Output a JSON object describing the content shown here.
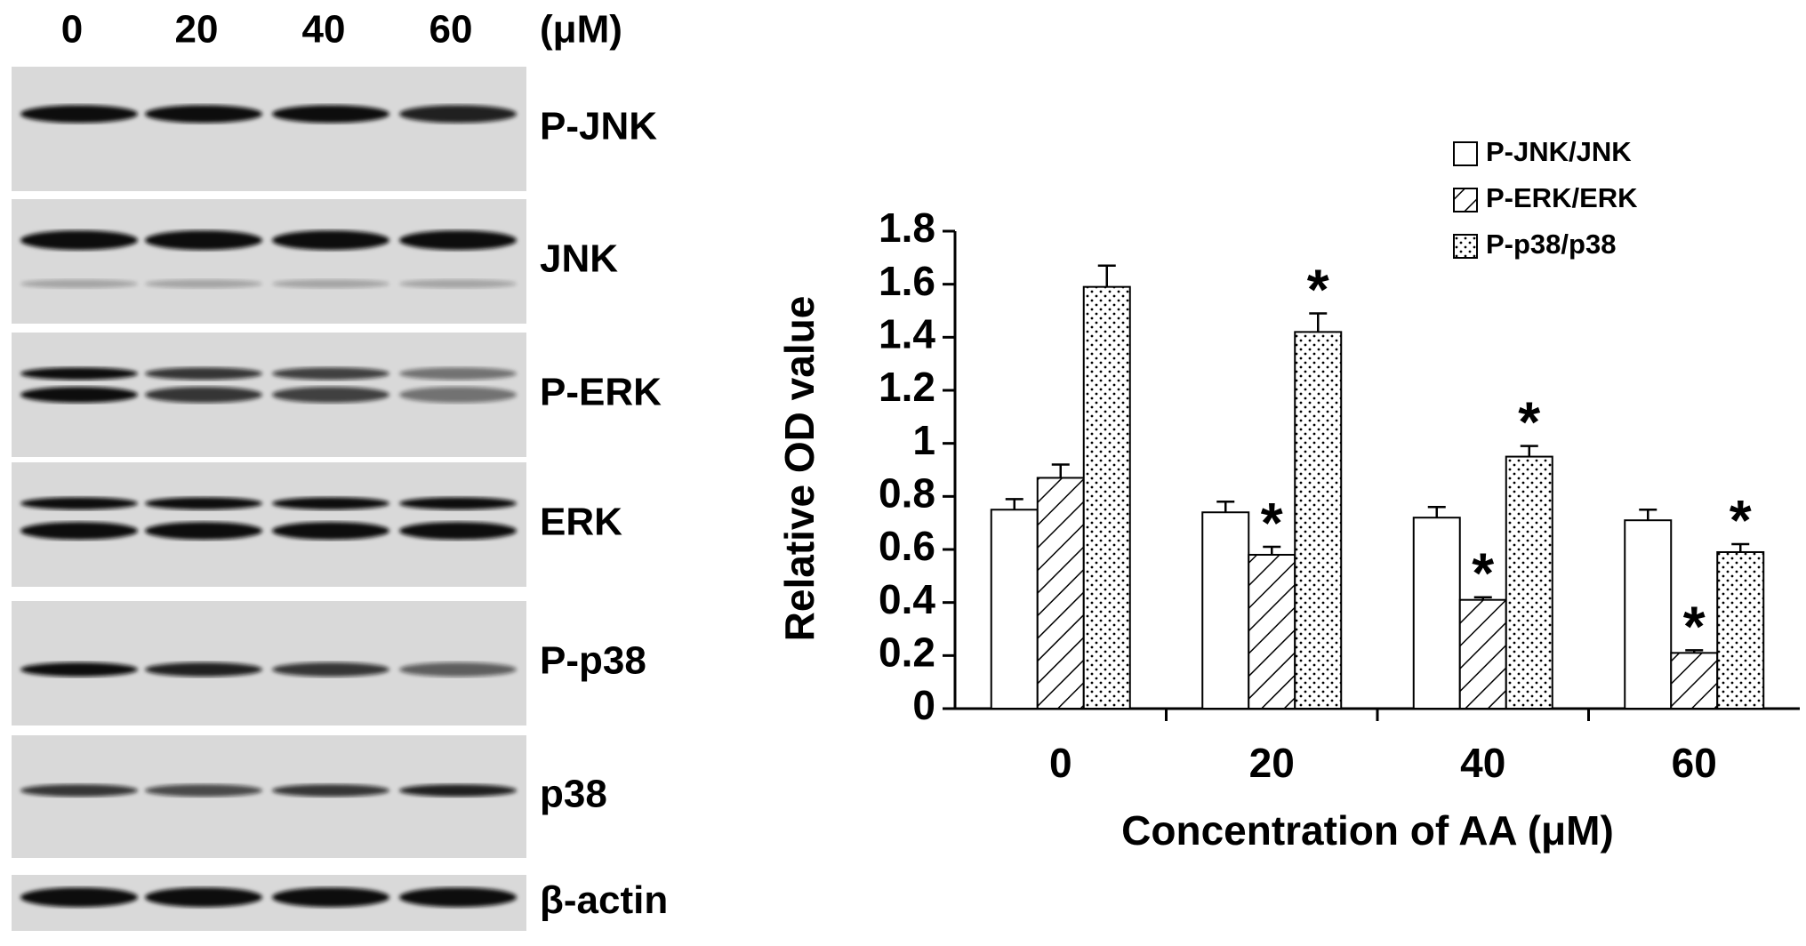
{
  "blot": {
    "lanes": [
      "0",
      "20",
      "40",
      "60"
    ],
    "unit": "(μM)",
    "rows": [
      "P-JNK",
      "JNK",
      "P-ERK",
      "ERK",
      "P-p38",
      "p38",
      "β-actin"
    ]
  },
  "chart_data": {
    "type": "bar",
    "y_label": "Relative OD value",
    "x_label": "Concentration of AA (μM)",
    "categories": [
      "0",
      "20",
      "40",
      "60"
    ],
    "series": [
      {
        "name": "P-JNK/JNK",
        "color": "#ffffff",
        "pattern": "none",
        "values": [
          0.75,
          0.74,
          0.72,
          0.71
        ],
        "errors": [
          0.04,
          0.04,
          0.04,
          0.04
        ],
        "annotations": [
          null,
          null,
          null,
          null
        ]
      },
      {
        "name": "P-ERK/ERK",
        "color": "#ffffff",
        "pattern": "hatch",
        "values": [
          0.87,
          0.58,
          0.41,
          0.21
        ],
        "errors": [
          0.05,
          0.03,
          0.01,
          0.01
        ],
        "annotations": [
          null,
          "*",
          "*",
          "*"
        ]
      },
      {
        "name": "P-p38/p38",
        "color": "#ffffff",
        "pattern": "dots",
        "values": [
          1.59,
          1.42,
          0.95,
          0.59
        ],
        "errors": [
          0.08,
          0.07,
          0.04,
          0.03
        ],
        "annotations": [
          null,
          "*",
          "*",
          "*"
        ]
      }
    ],
    "ylim": [
      0,
      1.8
    ],
    "yticks": [
      0,
      0.2,
      0.4,
      0.6,
      0.8,
      1,
      1.2,
      1.4,
      1.6,
      1.8
    ],
    "grid": false,
    "legend": "top-right"
  }
}
